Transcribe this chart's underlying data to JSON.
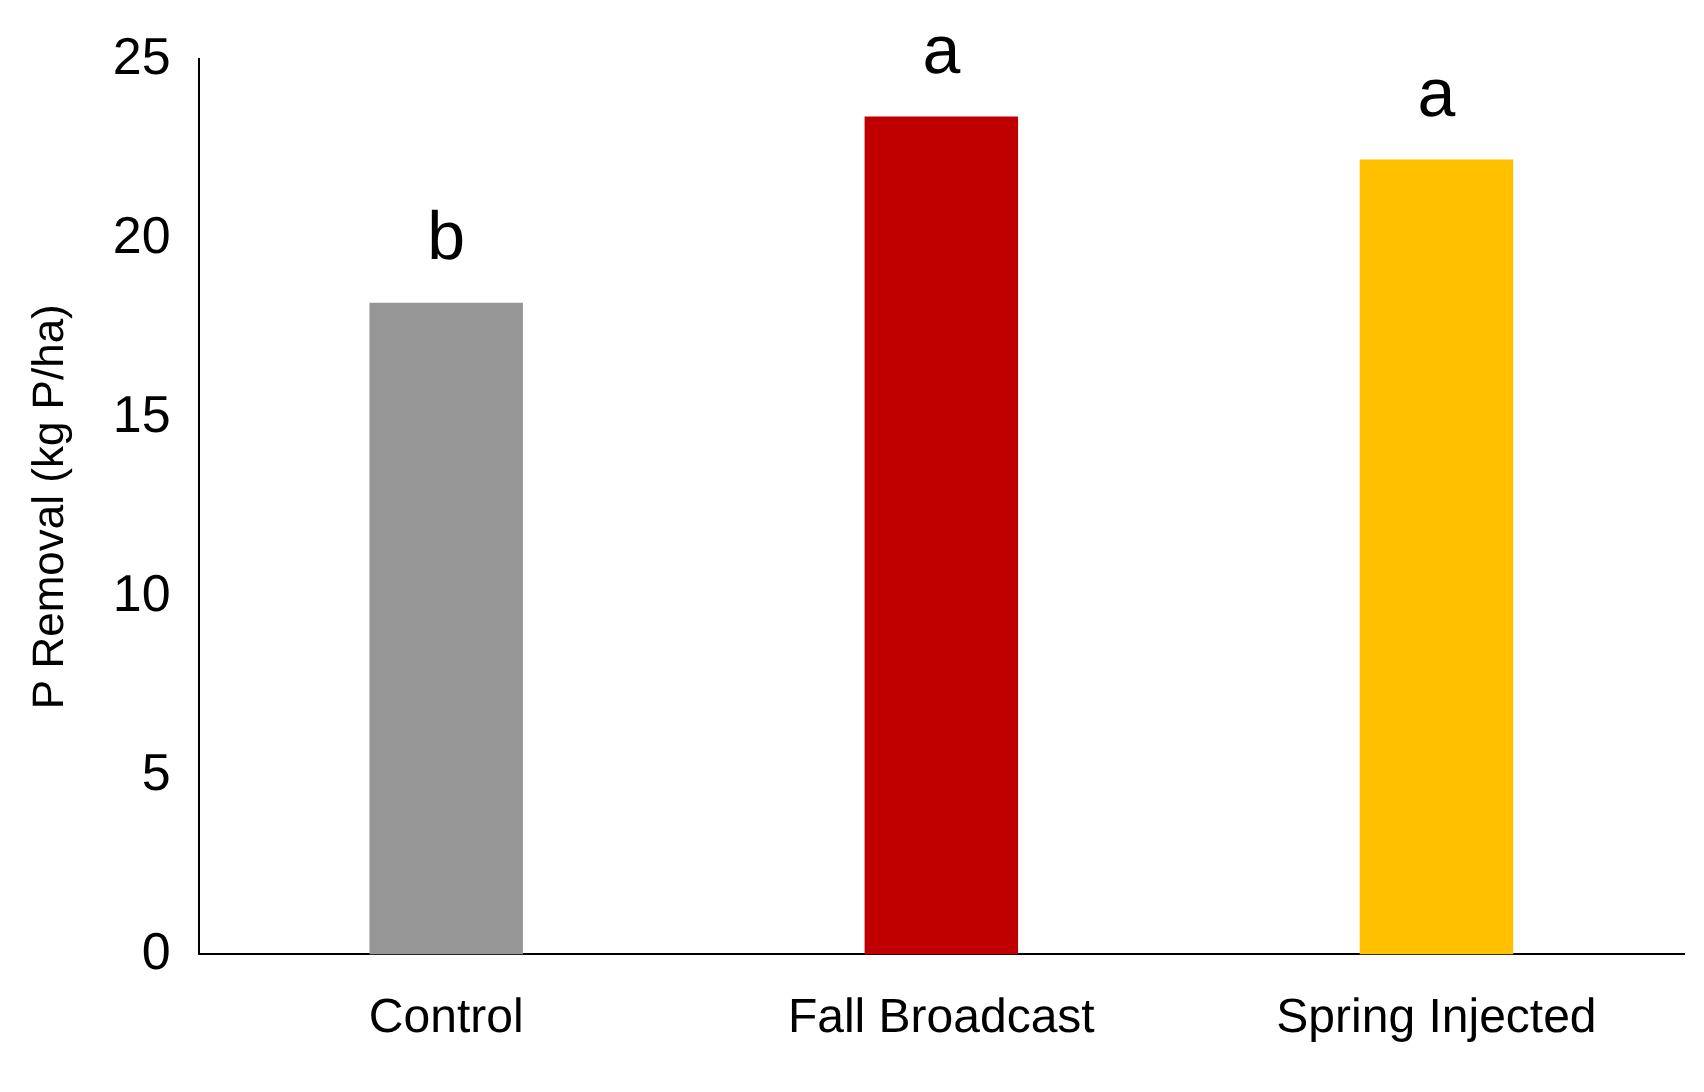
{
  "chart_data": {
    "type": "bar",
    "ylabel": "P Removal (kg P/ha)",
    "categories": [
      "Control",
      "Fall Broadcast",
      "Spring Injected"
    ],
    "values": [
      18.2,
      23.4,
      22.2
    ],
    "colors": [
      "#969696",
      "#c00000",
      "#ffc000"
    ],
    "ylim": [
      0,
      25
    ],
    "yticks": [
      0,
      5,
      10,
      15,
      20,
      25
    ],
    "grid": false,
    "legend": false,
    "annotations": [
      {
        "text": "b",
        "x": "Control",
        "y": 18.2
      },
      {
        "text": "a",
        "x": "Fall Broadcast",
        "y": 23.4
      },
      {
        "text": "a",
        "x": "Spring Injected",
        "y": 22.2
      }
    ]
  }
}
